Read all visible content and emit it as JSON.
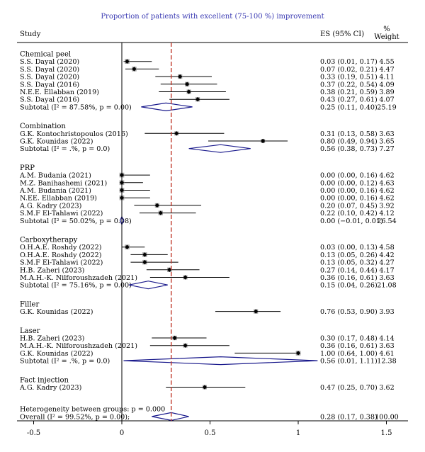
{
  "chart_data": {
    "type": "forest",
    "title": "Proportion of patients with excellent (75-100 %) improvement",
    "columns": {
      "study": "Study",
      "es": "ES (95% CI)",
      "weight_line1": "%",
      "weight_line2": "Weight"
    },
    "xlim": [
      -0.5,
      1.5
    ],
    "xticks": [
      "-0.5",
      "0",
      "0.5",
      "1",
      "1.5"
    ],
    "reference_line": 0.28,
    "groups": [
      {
        "name": "Chemical peel",
        "studies": [
          {
            "label": "S.S. Dayal (2020)",
            "es": 0.03,
            "lo": 0.01,
            "hi": 0.17,
            "ci_text": "0.03 (0.01, 0.17)",
            "weight": "4.55"
          },
          {
            "label": "S.S. Dayal (2020)",
            "es": 0.07,
            "lo": 0.02,
            "hi": 0.21,
            "ci_text": "0.07 (0.02, 0.21)",
            "weight": "4.47"
          },
          {
            "label": "S.S. Dayal (2020)",
            "es": 0.33,
            "lo": 0.19,
            "hi": 0.51,
            "ci_text": "0.33 (0.19, 0.51)",
            "weight": "4.11"
          },
          {
            "label": "S.S. Dayal (2016)",
            "es": 0.37,
            "lo": 0.22,
            "hi": 0.54,
            "ci_text": "0.37 (0.22, 0.54)",
            "weight": "4.09"
          },
          {
            "label": "N.E.E. Ellabban (2019)",
            "es": 0.38,
            "lo": 0.21,
            "hi": 0.59,
            "ci_text": "0.38 (0.21, 0.59)",
            "weight": "3.89"
          },
          {
            "label": "S.S. Dayal (2016)",
            "es": 0.43,
            "lo": 0.27,
            "hi": 0.61,
            "ci_text": "0.43 (0.27, 0.61)",
            "weight": "4.07"
          }
        ],
        "subtotal": {
          "label": "Subtotal (I² = 87.58%, p = 0.00)",
          "es": 0.25,
          "lo": 0.11,
          "hi": 0.4,
          "ci_text": "0.25 (0.11, 0.40)",
          "weight": "25.19"
        }
      },
      {
        "name": "Combination",
        "studies": [
          {
            "label": "G.K. Kontochristopoulos (2016)",
            "es": 0.31,
            "lo": 0.13,
            "hi": 0.58,
            "ci_text": "0.31 (0.13, 0.58)",
            "weight": "3.63"
          },
          {
            "label": "G.K. Kounidas (2022)",
            "es": 0.8,
            "lo": 0.49,
            "hi": 0.94,
            "ci_text": "0.80 (0.49, 0.94)",
            "weight": "3.65"
          }
        ],
        "subtotal": {
          "label": "Subtotal (I² = .%, p = 0.0)",
          "es": 0.56,
          "lo": 0.38,
          "hi": 0.73,
          "ci_text": "0.56 (0.38, 0.73)",
          "weight": "7.27"
        }
      },
      {
        "name": "PRP",
        "studies": [
          {
            "label": "A.M. Budania (2021)",
            "es": 0.0,
            "lo": 0.0,
            "hi": 0.16,
            "ci_text": "0.00 (0.00, 0.16)",
            "weight": "4.62"
          },
          {
            "label": "M.Z. Banihashemi (2021)",
            "es": 0.0,
            "lo": 0.0,
            "hi": 0.12,
            "ci_text": "0.00 (0.00, 0.12)",
            "weight": "4.63"
          },
          {
            "label": "A.M. Budania (2021)",
            "es": 0.0,
            "lo": 0.0,
            "hi": 0.16,
            "ci_text": "0.00 (0.00, 0.16)",
            "weight": "4.62"
          },
          {
            "label": "N.EE. Ellabban (2019)",
            "es": 0.0,
            "lo": 0.0,
            "hi": 0.16,
            "ci_text": "0.00 (0.00, 0.16)",
            "weight": "4.62"
          },
          {
            "label": "A.G. Kadry (2023)",
            "es": 0.2,
            "lo": 0.07,
            "hi": 0.45,
            "ci_text": "0.20 (0.07, 0.45)",
            "weight": "3.92"
          },
          {
            "label": "S.M.F El-Tahlawi (2022)",
            "es": 0.22,
            "lo": 0.1,
            "hi": 0.42,
            "ci_text": "0.22 (0.10, 0.42)",
            "weight": "4.12"
          }
        ],
        "subtotal": {
          "label": "Subtotal (I² = 50.02%, p = 0.08)",
          "es": 0.0,
          "lo": -0.01,
          "hi": 0.01,
          "ci_text": "0.00 (−0.01, 0.01)",
          "weight": "26.54"
        }
      },
      {
        "name": "Carboxytherapy",
        "studies": [
          {
            "label": "O.H.A.E. Roshdy (2022)",
            "es": 0.03,
            "lo": 0.0,
            "hi": 0.13,
            "ci_text": "0.03 (0.00, 0.13)",
            "weight": "4.58"
          },
          {
            "label": "O.H.A.E. Roshdy (2022)",
            "es": 0.13,
            "lo": 0.05,
            "hi": 0.26,
            "ci_text": "0.13 (0.05, 0.26)",
            "weight": "4.42"
          },
          {
            "label": "S.M.F El-Tahlawi (2022)",
            "es": 0.13,
            "lo": 0.05,
            "hi": 0.32,
            "ci_text": "0.13 (0.05, 0.32)",
            "weight": "4.27"
          },
          {
            "label": "H.B. Zaheri (2023)",
            "es": 0.27,
            "lo": 0.14,
            "hi": 0.44,
            "ci_text": "0.27 (0.14, 0.44)",
            "weight": "4.17"
          },
          {
            "label": "M.A.H.-K. Nilforoushzadeh (2021)",
            "es": 0.36,
            "lo": 0.16,
            "hi": 0.61,
            "ci_text": "0.36 (0.16, 0.61)",
            "weight": "3.63"
          }
        ],
        "subtotal": {
          "label": "Subtotal (I² = 75.16%, p = 0.00)",
          "es": 0.15,
          "lo": 0.04,
          "hi": 0.26,
          "ci_text": "0.15 (0.04, 0.26)",
          "weight": "21.08"
        }
      },
      {
        "name": "Filler",
        "studies": [
          {
            "label": "G.K. Kounidas (2022)",
            "es": 0.76,
            "lo": 0.53,
            "hi": 0.9,
            "ci_text": "0.76 (0.53, 0.90)",
            "weight": "3.93"
          }
        ],
        "subtotal": null
      },
      {
        "name": "Laser",
        "studies": [
          {
            "label": "H.B. Zaheri (2023)",
            "es": 0.3,
            "lo": 0.17,
            "hi": 0.48,
            "ci_text": "0.30 (0.17, 0.48)",
            "weight": "4.14"
          },
          {
            "label": "M.A.H.-K. Nilforoushzadeh (2021)",
            "es": 0.36,
            "lo": 0.16,
            "hi": 0.61,
            "ci_text": "0.36 (0.16, 0.61)",
            "weight": "3.63"
          },
          {
            "label": "G.K. Kounidas (2022)",
            "es": 1.0,
            "lo": 0.64,
            "hi": 1.0,
            "ci_text": "1.00 (0.64, 1.00)",
            "weight": "4.61"
          }
        ],
        "subtotal": {
          "label": "Subtotal (I² = .%, p = 0.0)",
          "es": 0.56,
          "lo": 0.01,
          "hi": 1.11,
          "ci_text": "0.56 (0.01, 1.11)",
          "weight": "12.38"
        }
      },
      {
        "name": "Fact injection",
        "studies": [
          {
            "label": "A.G. Kadry (2023)",
            "es": 0.47,
            "lo": 0.25,
            "hi": 0.7,
            "ci_text": "0.47 (0.25, 0.70)",
            "weight": "3.62"
          }
        ],
        "subtotal": null
      }
    ],
    "heterogeneity_text": "Heterogeneity between groups: p = 0.000",
    "overall": {
      "label": "Overall (I² = 99.52%, p = 0.00);",
      "es": 0.28,
      "lo": 0.17,
      "hi": 0.38,
      "ci_text": "0.28 (0.17, 0.38)",
      "weight": "100.00"
    },
    "colors": {
      "title": "#3b3bb3",
      "diamond": "#1a1a8c",
      "reference": "#c0392b",
      "marker_box": "#a6a6a6"
    }
  }
}
